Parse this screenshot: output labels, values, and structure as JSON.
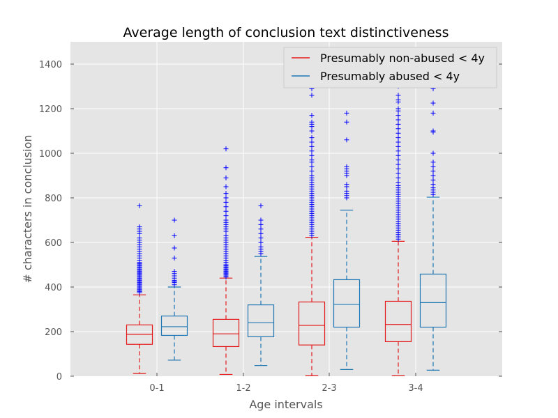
{
  "chart_data": {
    "type": "box",
    "title": "Average length of conclusion text distinctiveness",
    "xlabel": "Age intervals",
    "ylabel": "# characters in conclusion",
    "ylim": [
      0,
      1500
    ],
    "yticks": [
      0,
      200,
      400,
      600,
      800,
      1000,
      1200,
      1400
    ],
    "categories": [
      "0-1",
      "1-2",
      "2-3",
      "3-4"
    ],
    "grid": true,
    "legend_position": "top-right",
    "series": [
      {
        "name": "Presumably non-abused < 4y",
        "color": "#e41a1c",
        "boxes": [
          {
            "whisker_low": 12,
            "q1": 143,
            "median": 188,
            "q3": 230,
            "whisker_high": 365,
            "outliers": [
              375,
              380,
              385,
              390,
              395,
              400,
              405,
              410,
              415,
              420,
              425,
              430,
              435,
              440,
              445,
              450,
              455,
              460,
              465,
              470,
              475,
              480,
              485,
              490,
              495,
              500,
              505,
              510,
              520,
              530,
              540,
              550,
              560,
              570,
              580,
              590,
              600,
              610,
              620,
              640,
              650,
              660,
              670,
              765
            ]
          },
          {
            "whisker_low": 8,
            "q1": 133,
            "median": 190,
            "q3": 255,
            "whisker_high": 440,
            "outliers": [
              445,
              450,
              455,
              460,
              465,
              470,
              475,
              480,
              485,
              490,
              495,
              500,
              510,
              520,
              530,
              540,
              550,
              560,
              570,
              580,
              590,
              600,
              610,
              620,
              630,
              650,
              660,
              670,
              680,
              690,
              700,
              720,
              740,
              760,
              780,
              800,
              820,
              850,
              890,
              935,
              1020
            ]
          },
          {
            "whisker_low": 2,
            "q1": 140,
            "median": 228,
            "q3": 333,
            "whisker_high": 623,
            "outliers": [
              630,
              640,
              650,
              660,
              670,
              680,
              690,
              700,
              710,
              720,
              730,
              740,
              750,
              760,
              770,
              780,
              790,
              800,
              810,
              820,
              830,
              840,
              850,
              860,
              870,
              880,
              890,
              900,
              920,
              940,
              960,
              970,
              990,
              1010,
              1030,
              1050,
              1070,
              1100,
              1120,
              1130,
              1140,
              1170,
              1260,
              1290
            ]
          },
          {
            "whisker_low": 2,
            "q1": 155,
            "median": 232,
            "q3": 336,
            "whisker_high": 605,
            "outliers": [
              615,
              625,
              635,
              645,
              655,
              665,
              675,
              685,
              695,
              705,
              715,
              725,
              735,
              745,
              755,
              765,
              775,
              785,
              795,
              805,
              815,
              825,
              835,
              845,
              855,
              870,
              890,
              910,
              930,
              950,
              970,
              990,
              1010,
              1030,
              1050,
              1070,
              1090,
              1110,
              1130,
              1150,
              1170,
              1190,
              1200,
              1230,
              1240,
              1260,
              1300
            ]
          }
        ]
      },
      {
        "name": "Presumably abused < 4y",
        "color": "#1f77b4",
        "boxes": [
          {
            "whisker_low": 72,
            "q1": 183,
            "median": 222,
            "q3": 270,
            "whisker_high": 400,
            "outliers": [
              410,
              420,
              425,
              430,
              440,
              450,
              460,
              470,
              530,
              575,
              630,
              700
            ]
          },
          {
            "whisker_low": 48,
            "q1": 177,
            "median": 240,
            "q3": 320,
            "whisker_high": 537,
            "outliers": [
              550,
              560,
              570,
              580,
              600,
              620,
              640,
              660,
              680,
              700,
              765
            ]
          },
          {
            "whisker_low": 30,
            "q1": 220,
            "median": 322,
            "q3": 433,
            "whisker_high": 745,
            "outliers": [
              800,
              810,
              820,
              830,
              850,
              860,
              900,
              910,
              920,
              930,
              940,
              1060,
              1140,
              1180
            ]
          },
          {
            "whisker_low": 27,
            "q1": 220,
            "median": 330,
            "q3": 458,
            "whisker_high": 803,
            "outliers": [
              815,
              825,
              835,
              845,
              860,
              880,
              900,
              920,
              940,
              960,
              1000,
              1095,
              1100,
              1180,
              1225,
              1290
            ]
          }
        ]
      }
    ]
  }
}
